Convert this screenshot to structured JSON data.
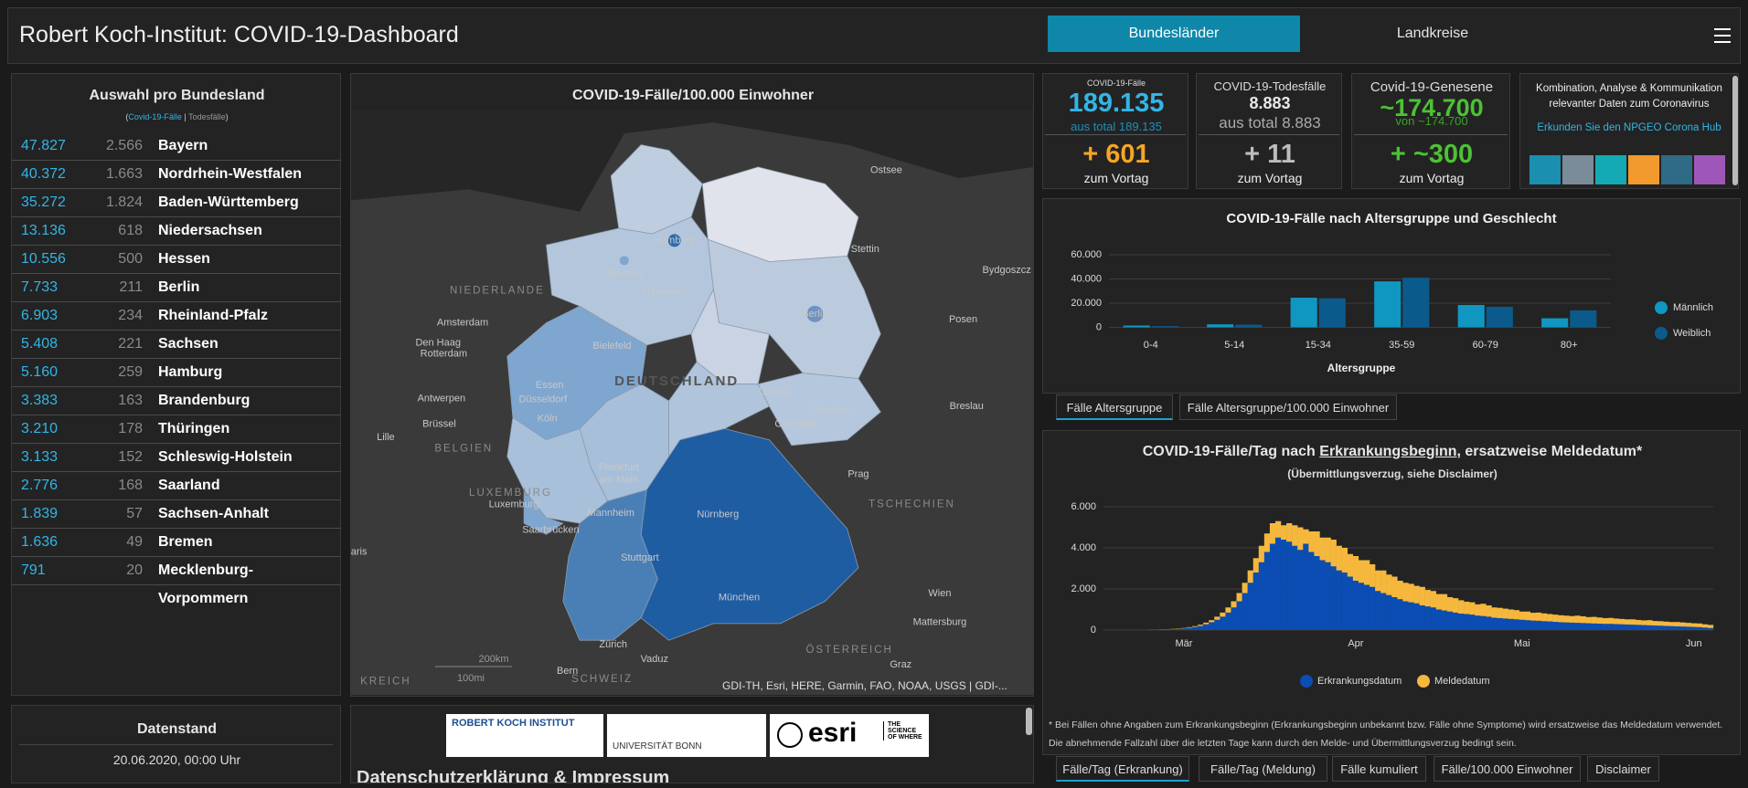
{
  "header": {
    "title": "Robert Koch-Institut: COVID-19-Dashboard",
    "tabs": [
      "Bundesländer",
      "Landkreise"
    ]
  },
  "states_panel": {
    "title": "Auswahl pro Bundesland",
    "subtitle": [
      "(",
      "Covid-19-Fälle",
      " | ",
      "Todesfälle",
      ")"
    ]
  },
  "states": [
    {
      "cases": "47.827",
      "deaths": "2.566",
      "name": "Bayern"
    },
    {
      "cases": "40.372",
      "deaths": "1.663",
      "name": "Nordrhein-Westfalen"
    },
    {
      "cases": "35.272",
      "deaths": "1.824",
      "name": "Baden-Württemberg"
    },
    {
      "cases": "13.136",
      "deaths": "618",
      "name": "Niedersachsen"
    },
    {
      "cases": "10.556",
      "deaths": "500",
      "name": "Hessen"
    },
    {
      "cases": "7.733",
      "deaths": "211",
      "name": "Berlin"
    },
    {
      "cases": "6.903",
      "deaths": "234",
      "name": "Rheinland-Pfalz"
    },
    {
      "cases": "5.408",
      "deaths": "221",
      "name": "Sachsen"
    },
    {
      "cases": "5.160",
      "deaths": "259",
      "name": "Hamburg"
    },
    {
      "cases": "3.383",
      "deaths": "163",
      "name": "Brandenburg"
    },
    {
      "cases": "3.210",
      "deaths": "178",
      "name": "Thüringen"
    },
    {
      "cases": "3.133",
      "deaths": "152",
      "name": "Schleswig-Holstein"
    },
    {
      "cases": "2.776",
      "deaths": "168",
      "name": "Saarland"
    },
    {
      "cases": "1.839",
      "deaths": "57",
      "name": "Sachsen-Anhalt"
    },
    {
      "cases": "1.636",
      "deaths": "49",
      "name": "Bremen"
    },
    {
      "cases": "791",
      "deaths": "20",
      "name": "Mecklenburg-Vorpommern"
    }
  ],
  "datenstand": {
    "title": "Datenstand",
    "value": "20.06.2020, 00:00 Uhr"
  },
  "map": {
    "title": "COVID-19-Fälle/100.000 Einwohner",
    "labels": [
      "Ostsee",
      "Hamburg",
      "Bremen",
      "NIEDERLANDE",
      "Amsterdam",
      "Den Haag",
      "Rotterdam",
      "Hannover",
      "Bielefeld",
      "Berlin",
      "Stettin",
      "Bydgoszcz",
      "Posen",
      "DEUTSCHLAND",
      "Essen",
      "Düsseldorf",
      "Köln",
      "Antwerpen",
      "Brüssel",
      "Lille",
      "BELGIEN",
      "Leipzig",
      "Dresden",
      "Chemnitz",
      "Breslau",
      "Frankfurt",
      "am Main",
      "Prag",
      "TSCHECHIEN",
      "LUXEMBURG",
      "Luxemburg",
      "Saarbrücken",
      "Mannheim",
      "Nürnberg",
      "Stuttgart",
      "München",
      "Wien",
      "Mattersburg",
      "Zürich",
      "Vaduz",
      "Bern",
      "SCHWEIZ",
      "ÖSTERREICH",
      "Graz",
      "KREICH",
      "aris"
    ],
    "scale": [
      "200km",
      "100mi"
    ],
    "attribution": "GDI-TH, Esri, HERE, Garmin, FAO, NOAA, USGS | GDI-..."
  },
  "logos": {
    "rki": "ROBERT KOCH INSTITUT",
    "bonn": "UNIVERSITÄT BONN",
    "esri": "esri",
    "esri_tag": "THE SCIENCE OF WHERE",
    "footer_heading": "Datenschutzerklärung & Impressum"
  },
  "kpis": [
    {
      "title": "COVID-19-Fälle",
      "value": "189.135",
      "total": "aus total 189.135",
      "delta": "+ 601",
      "delta_label": "zum Vortag"
    },
    {
      "title": "COVID-19-Todesfälle",
      "value": "8.883",
      "total": "aus total 8.883",
      "delta": "+ 11",
      "delta_label": "zum Vortag"
    },
    {
      "title": "Covid-19-Genesene",
      "value": "~174.700",
      "total": "von ~174.700",
      "delta": "+ ~300",
      "delta_label": "zum Vortag"
    }
  ],
  "info": {
    "text": "Kombination, Analyse & Kommunikation relevanter Daten zum Coronavirus",
    "link": "Erkunden Sie den NPGEO Corona Hub"
  },
  "age_tabs": [
    "Fälle Altersgruppe",
    "Fälle Altersgruppe/100.000 Einwohner"
  ],
  "daily_tabs": [
    "Fälle/Tag (Erkrankung)",
    "Fälle/Tag (Meldung)",
    "Fälle kumuliert",
    "Fälle/100.000 Einwohner",
    "Disclaimer"
  ],
  "daily_footnote": "* Bei Fällen ohne Angaben zum Erkrankungsbeginn (Erkrankungsbeginn unbekannt bzw. Fälle ohne Symptome) wird ersatzweise das Meldedatum verwendet. Die abnehmende Fallzahl über die letzten Tage kann durch den Melde- und Übermittlungsverzug bedingt sein.",
  "chart_data": [
    {
      "type": "bar",
      "title": "COVID-19-Fälle nach Altersgruppe und Geschlecht",
      "x_label": "Altersgruppe",
      "categories": [
        "0-4",
        "5-14",
        "15-34",
        "35-59",
        "60-79",
        "80+"
      ],
      "series": [
        {
          "name": "Männlich",
          "color": "#0f97c2",
          "values": [
            1500,
            2500,
            24500,
            38000,
            18500,
            7500
          ]
        },
        {
          "name": "Weiblich",
          "color": "#0b5a8c",
          "values": [
            1000,
            2200,
            24000,
            41000,
            17000,
            14000
          ]
        }
      ],
      "ylim": [
        0,
        60000
      ],
      "yticks": [
        0,
        {
          "value": 20000,
          "label": "20.000"
        },
        {
          "value": 40000,
          "label": "40.000"
        },
        {
          "value": 60000,
          "label": "60.000"
        }
      ],
      "grid": true,
      "legend": "right"
    },
    {
      "type": "stacked_bar",
      "title": [
        "COVID-19-Fälle/Tag nach ",
        "Erkrankungsbeginn",
        ", ersatzweise Meldedatum*"
      ],
      "subtitle": "(Übermittlungsverzug, siehe Disclaimer)",
      "categories": [
        null,
        null,
        null,
        null,
        null,
        null,
        null,
        null,
        null,
        null,
        null,
        null,
        null,
        null,
        "Mär",
        null,
        null,
        null,
        null,
        null,
        null,
        null,
        null,
        null,
        null,
        null,
        null,
        null,
        null,
        null,
        null,
        null,
        null,
        null,
        null,
        null,
        null,
        null,
        null,
        null,
        null,
        null,
        null,
        null,
        null,
        "Apr",
        null,
        null,
        null,
        null,
        null,
        null,
        null,
        null,
        null,
        null,
        null,
        null,
        null,
        null,
        null,
        null,
        null,
        null,
        null,
        null,
        null,
        null,
        null,
        null,
        null,
        null,
        null,
        null,
        null,
        "Mai",
        null,
        null,
        null,
        null,
        null,
        null,
        null,
        null,
        null,
        null,
        null,
        null,
        null,
        null,
        null,
        null,
        null,
        null,
        null,
        null,
        null,
        null,
        null,
        null,
        null,
        null,
        null,
        null,
        null,
        null,
        "Jun",
        null,
        null,
        null
      ],
      "series": [
        {
          "name": "Erkrankungsdatum",
          "color": "#0b4db3",
          "values": [
            0,
            0,
            0,
            0,
            0,
            0,
            0,
            5,
            10,
            15,
            20,
            30,
            40,
            50,
            80,
            110,
            150,
            200,
            280,
            380,
            500,
            650,
            850,
            1100,
            1400,
            1800,
            2300,
            2800,
            3300,
            3800,
            4200,
            4500,
            4400,
            4300,
            4100,
            3900,
            4200,
            3800,
            3600,
            3400,
            3300,
            3100,
            2900,
            2800,
            2600,
            2400,
            2300,
            2200,
            2100,
            1900,
            1800,
            1700,
            1600,
            1500,
            1400,
            1350,
            1300,
            1200,
            1150,
            1100,
            1000,
            950,
            900,
            850,
            800,
            780,
            750,
            700,
            680,
            650,
            600,
            580,
            560,
            540,
            520,
            500,
            480,
            460,
            450,
            430,
            420,
            400,
            380,
            370,
            360,
            350,
            340,
            330,
            320,
            310,
            300,
            300,
            290,
            280,
            270,
            260,
            250,
            240,
            230,
            220,
            210,
            200,
            190,
            180,
            170,
            160,
            150,
            140,
            120,
            100
          ]
        },
        {
          "name": "Meldedatum",
          "color": "#f5b83d",
          "values": [
            0,
            0,
            0,
            0,
            0,
            0,
            0,
            0,
            5,
            5,
            10,
            10,
            15,
            20,
            20,
            30,
            40,
            60,
            80,
            100,
            150,
            200,
            250,
            300,
            400,
            500,
            600,
            700,
            800,
            900,
            1000,
            800,
            700,
            900,
            1000,
            1100,
            700,
            1000,
            1200,
            1100,
            1200,
            1300,
            1200,
            1200,
            1100,
            1200,
            1100,
            1200,
            1100,
            1000,
            1100,
            1000,
            1000,
            900,
            900,
            900,
            850,
            900,
            800,
            800,
            750,
            800,
            700,
            700,
            650,
            600,
            600,
            550,
            600,
            550,
            500,
            500,
            480,
            460,
            450,
            400,
            420,
            380,
            400,
            380,
            360,
            350,
            340,
            330,
            320,
            350,
            330,
            300,
            320,
            300,
            280,
            290,
            270,
            260,
            250,
            260,
            240,
            230,
            250,
            220,
            220,
            210,
            200,
            210,
            200,
            190,
            180,
            180,
            160,
            150
          ]
        }
      ],
      "ylim": [
        0,
        6000
      ],
      "yticks": [
        0,
        {
          "value": 2000,
          "label": "2.000"
        },
        {
          "value": 4000,
          "label": "4.000"
        },
        {
          "value": 6000,
          "label": "6.000"
        }
      ],
      "grid": true,
      "legend": "bottom"
    }
  ]
}
